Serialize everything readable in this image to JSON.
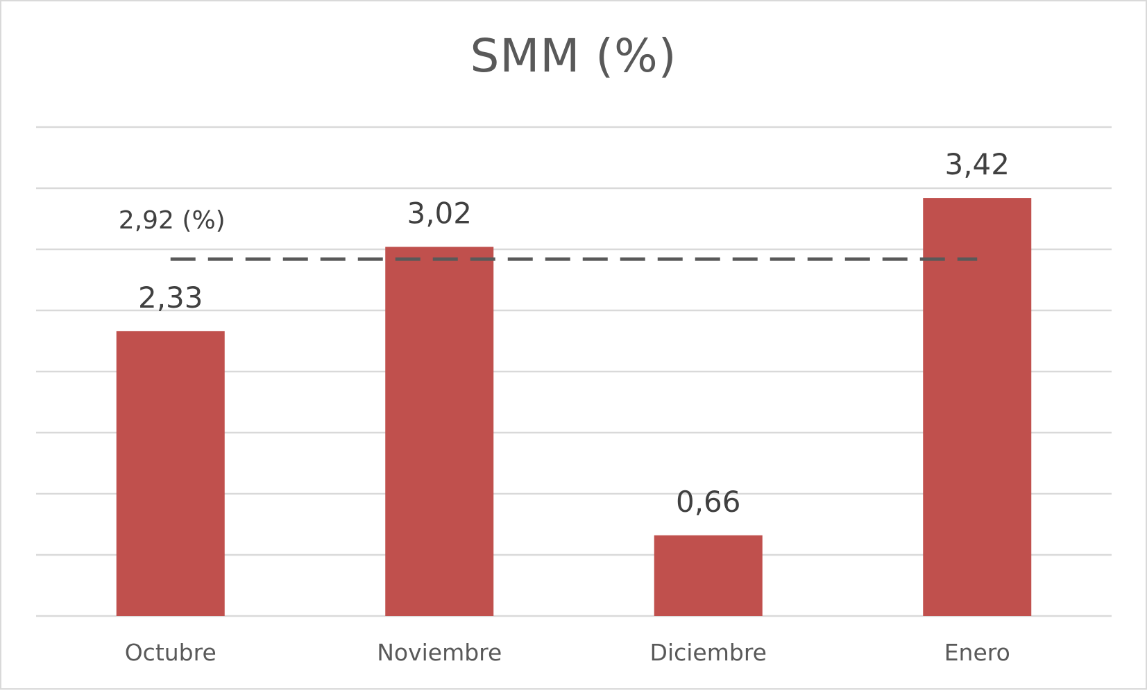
{
  "chart_data": {
    "type": "bar",
    "title": "SMM (%)",
    "categories": [
      "Octubre",
      "Noviembre",
      "Diciembre",
      "Enero"
    ],
    "values": [
      2.33,
      3.02,
      0.66,
      3.42
    ],
    "data_labels": [
      "2,33",
      "3,02",
      "0,66",
      "3,42"
    ],
    "ylim": [
      0,
      4
    ],
    "grid": true,
    "bar_color": "#c0504d",
    "reference_line": {
      "value": 2.92,
      "label": "2,92 (%)",
      "style": "dashed",
      "color": "#595959"
    }
  }
}
